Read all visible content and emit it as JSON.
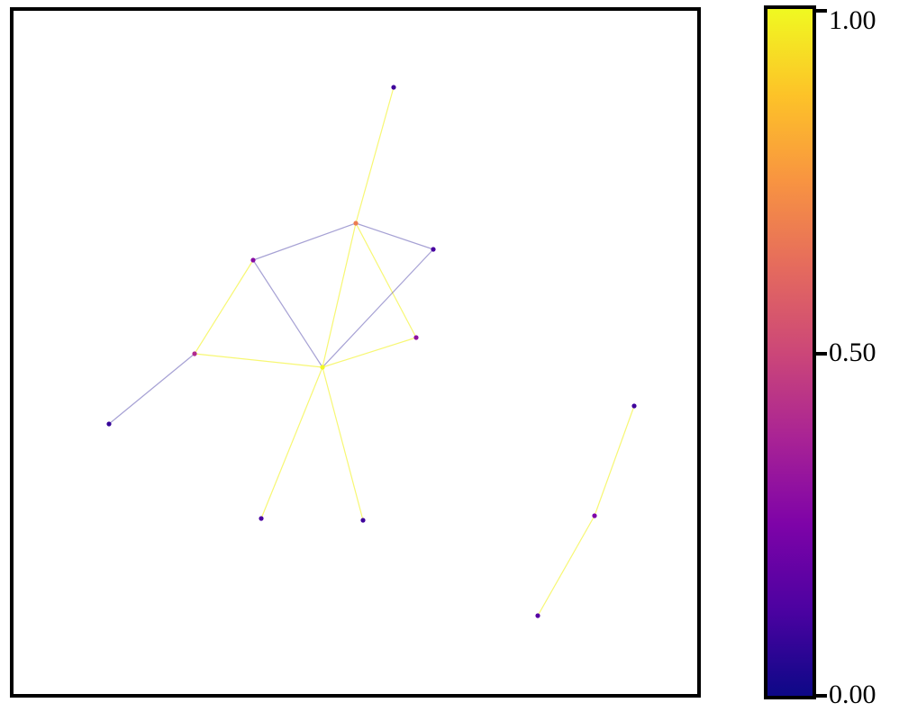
{
  "colorbar": {
    "ticks": [
      {
        "value": 1.0,
        "label": "1.00"
      },
      {
        "value": 0.5,
        "label": "0.50"
      },
      {
        "value": 0.0,
        "label": "0.00"
      }
    ]
  },
  "graph": {
    "node_value_range": [
      0,
      1
    ],
    "edge_colors": {
      "high": "#f0f000",
      "low": "#3a2fa0"
    },
    "nodes": [
      {
        "id": "n0",
        "value": 0.1
      },
      {
        "id": "n1",
        "value": 0.68
      },
      {
        "id": "n2",
        "value": 0.28
      },
      {
        "id": "n3",
        "value": 0.12
      },
      {
        "id": "n4",
        "value": 0.3
      },
      {
        "id": "n5",
        "value": 0.4
      },
      {
        "id": "n6",
        "value": 1.0
      },
      {
        "id": "n7",
        "value": 0.08
      },
      {
        "id": "n8",
        "value": 0.12
      },
      {
        "id": "n9",
        "value": 0.1
      },
      {
        "id": "n10",
        "value": 0.1
      },
      {
        "id": "n11",
        "value": 0.25
      },
      {
        "id": "n12",
        "value": 0.15
      }
    ],
    "edges": [
      {
        "from": "n0",
        "to": "n1",
        "weight": 1
      },
      {
        "from": "n1",
        "to": "n2",
        "weight": 0
      },
      {
        "from": "n1",
        "to": "n3",
        "weight": 0
      },
      {
        "from": "n1",
        "to": "n6",
        "weight": 1
      },
      {
        "from": "n1",
        "to": "n4",
        "weight": 1
      },
      {
        "from": "n2",
        "to": "n5",
        "weight": 1
      },
      {
        "from": "n2",
        "to": "n6",
        "weight": 0
      },
      {
        "from": "n3",
        "to": "n6",
        "weight": 0
      },
      {
        "from": "n5",
        "to": "n6",
        "weight": 1
      },
      {
        "from": "n4",
        "to": "n6",
        "weight": 1
      },
      {
        "from": "n5",
        "to": "n7",
        "weight": 0
      },
      {
        "from": "n6",
        "to": "n8",
        "weight": 1
      },
      {
        "from": "n6",
        "to": "n9",
        "weight": 1
      },
      {
        "from": "n10",
        "to": "n11",
        "weight": 1
      },
      {
        "from": "n11",
        "to": "n12",
        "weight": 1
      }
    ]
  }
}
